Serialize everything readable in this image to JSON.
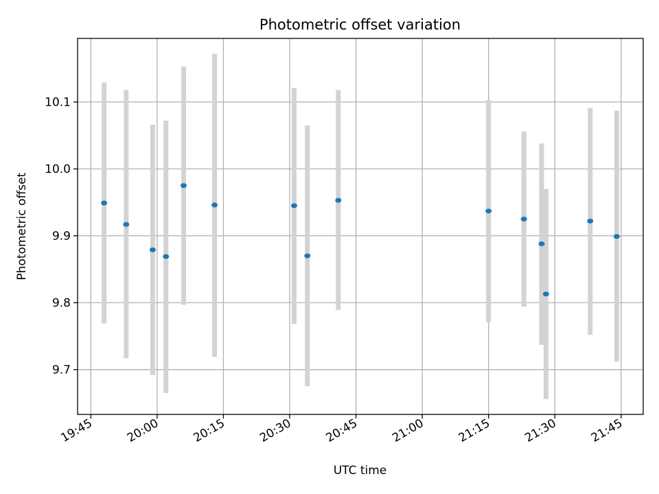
{
  "chart_data": {
    "type": "scatter",
    "title": "Photometric offset variation",
    "xlabel": "UTC time",
    "ylabel": "Photometric offset",
    "x_ticks": [
      "19:45",
      "20:00",
      "20:15",
      "20:30",
      "20:45",
      "21:00",
      "21:15",
      "21:30",
      "21:45"
    ],
    "x_tick_minutes": [
      1185,
      1200,
      1215,
      1230,
      1245,
      1260,
      1275,
      1290,
      1305
    ],
    "xlim": [
      "19:42",
      "21:50"
    ],
    "y_ticks": [
      "9.7",
      "9.8",
      "9.9",
      "10.0",
      "10.1"
    ],
    "y_tick_values": [
      9.7,
      9.8,
      9.9,
      10.0,
      10.1
    ],
    "ylim": [
      9.633,
      10.195
    ],
    "grid": true,
    "marker_color": "#1f77b4",
    "errorbar_color": "#d3d3d3",
    "points": [
      {
        "time": "19:48",
        "offset": 9.949,
        "low": 9.769,
        "high": 10.129
      },
      {
        "time": "19:53",
        "offset": 9.917,
        "low": 9.717,
        "high": 10.118
      },
      {
        "time": "19:59",
        "offset": 9.879,
        "low": 9.692,
        "high": 10.066
      },
      {
        "time": "20:02",
        "offset": 9.869,
        "low": 9.665,
        "high": 10.072
      },
      {
        "time": "20:06",
        "offset": 9.975,
        "low": 9.797,
        "high": 10.153
      },
      {
        "time": "20:13",
        "offset": 9.946,
        "low": 9.719,
        "high": 10.172
      },
      {
        "time": "20:31",
        "offset": 9.945,
        "low": 9.768,
        "high": 10.121
      },
      {
        "time": "20:34",
        "offset": 9.87,
        "low": 9.675,
        "high": 10.065
      },
      {
        "time": "20:41",
        "offset": 9.953,
        "low": 9.789,
        "high": 10.118
      },
      {
        "time": "21:15",
        "offset": 9.937,
        "low": 9.771,
        "high": 10.103
      },
      {
        "time": "21:23",
        "offset": 9.925,
        "low": 9.794,
        "high": 10.056
      },
      {
        "time": "21:27",
        "offset": 9.888,
        "low": 9.737,
        "high": 10.038
      },
      {
        "time": "21:28",
        "offset": 9.813,
        "low": 9.656,
        "high": 9.97
      },
      {
        "time": "21:38",
        "offset": 9.922,
        "low": 9.752,
        "high": 10.091
      },
      {
        "time": "21:44",
        "offset": 9.899,
        "low": 9.712,
        "high": 10.087
      }
    ]
  }
}
